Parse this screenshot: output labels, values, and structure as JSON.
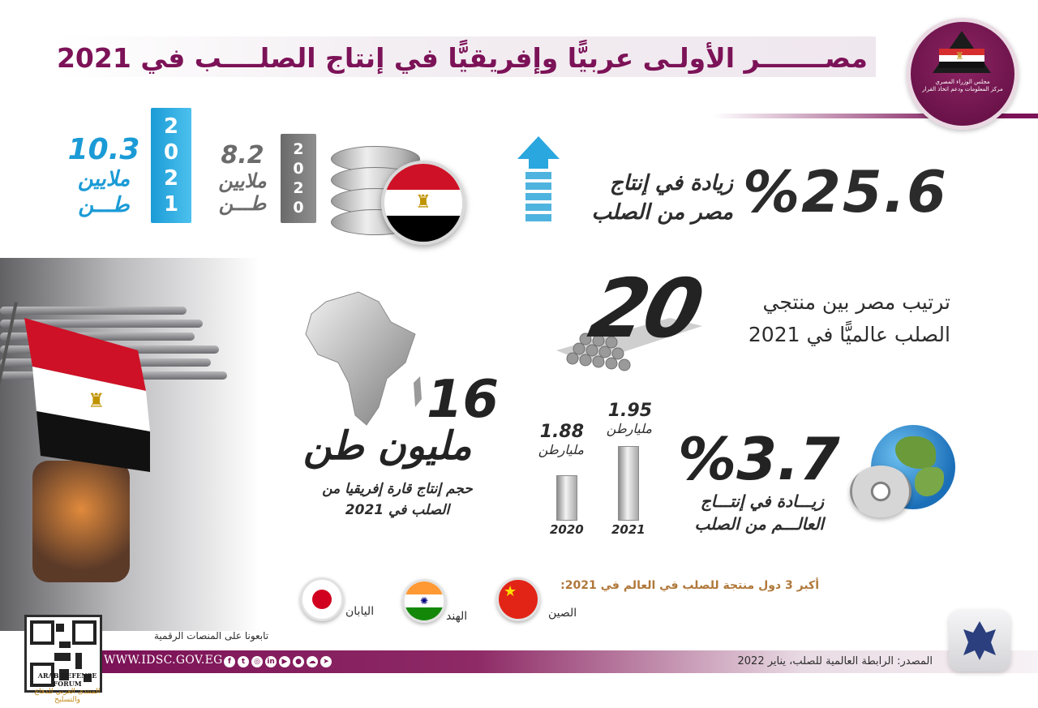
{
  "header": {
    "title": "مصـــــــر الأولـى عربيًّا وإفريقيًّا في إنتاج الصلــــب في 2021",
    "logo_text_line1": "مجلس الوزراء المصري",
    "logo_text_line2": "مركز المعلومات ودعم اتخاذ القرار"
  },
  "egypt": {
    "increase_value": "25.6",
    "percent_sign": "%",
    "increase_label_line1": "زيادة في إنتاج",
    "increase_label_line2": "مصر من الصلب",
    "year_2020": {
      "digits": [
        "2",
        "0",
        "2",
        "0"
      ],
      "value": "8.2",
      "unit_line1": "ملايين",
      "unit_line2": "طـــن"
    },
    "year_2021": {
      "digits": [
        "2",
        "0",
        "2",
        "1"
      ],
      "value": "10.3",
      "unit_line1": "ملايين",
      "unit_line2": "طـــن"
    }
  },
  "ranking": {
    "rank": "20",
    "label_line1": "ترتيب مصر بين منتجي",
    "label_line2": "الصلب عالميًّا في 2021"
  },
  "africa": {
    "value": "16",
    "unit": "مليون طن",
    "label_line1": "حجم إنتاج قارة إفريقيا من",
    "label_line2": "الصلب في 2021"
  },
  "world": {
    "increase_value": "3.7",
    "percent_sign": "%",
    "label_line1": "زيـــادة في إنتـــاج",
    "label_line2": "العالـــم من الصلب",
    "bars": [
      {
        "year": "2020",
        "value": "1.88",
        "unit": "مليارطن",
        "relative": 0.964
      },
      {
        "year": "2021",
        "value": "1.95",
        "unit": "مليارطن",
        "relative": 1.0
      }
    ]
  },
  "top_producers": {
    "heading": "أكبر 3 دول منتجة للصلب في العالم في 2021:",
    "countries": [
      {
        "name": "الصين",
        "flag": "china-flag"
      },
      {
        "name": "الهند",
        "flag": "india-flag"
      },
      {
        "name": "اليابان",
        "flag": "japan-flag"
      }
    ]
  },
  "footer": {
    "follow_text": "تابعونا على المنصات الرقمية",
    "url": "WWW.IDSC.GOV.EG",
    "source": "المصدر: الرابطة العالمية للصلب، يناير 2022",
    "social_icons": [
      "facebook-icon",
      "twitter-icon",
      "instagram-icon",
      "linkedin-icon",
      "youtube-icon",
      "flickr-icon",
      "soundcloud-icon",
      "telegram-icon"
    ],
    "watermark_line1": "ARAB DEFENSE FORUM",
    "watermark_line2": "المنتدى العربي للدفاع والتسليح"
  },
  "colors": {
    "brand_magenta": "#7c1257",
    "accent_blue": "#2aa7de",
    "bar_gray": "#7d7d7d"
  }
}
